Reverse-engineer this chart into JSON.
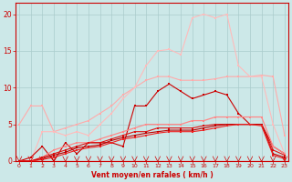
{
  "x": [
    0,
    1,
    2,
    3,
    4,
    5,
    6,
    7,
    8,
    9,
    10,
    11,
    12,
    13,
    14,
    15,
    16,
    17,
    18,
    19,
    20,
    21,
    22,
    23
  ],
  "series": [
    {
      "name": "light_pink_upper",
      "color": "#ffaaaa",
      "linewidth": 0.8,
      "markersize": 2.0,
      "y": [
        5.0,
        7.5,
        7.5,
        4.0,
        4.5,
        5.0,
        5.5,
        6.5,
        7.5,
        9.0,
        10.0,
        11.0,
        11.5,
        11.5,
        11.0,
        11.0,
        11.0,
        11.2,
        11.5,
        11.5,
        11.5,
        11.7,
        11.5,
        3.5
      ]
    },
    {
      "name": "light_pink_peak",
      "color": "#ffbbbb",
      "linewidth": 0.8,
      "markersize": 2.0,
      "y": [
        0.0,
        0.0,
        4.0,
        4.0,
        3.5,
        4.0,
        3.5,
        5.0,
        6.5,
        8.5,
        10.0,
        13.0,
        15.0,
        15.2,
        14.5,
        19.5,
        20.0,
        19.5,
        20.0,
        13.0,
        11.5,
        11.5,
        5.0,
        1.0
      ]
    },
    {
      "name": "dark_red_zigzag",
      "color": "#cc0000",
      "linewidth": 0.8,
      "markersize": 2.0,
      "y": [
        0.0,
        0.5,
        2.0,
        0.0,
        2.5,
        1.0,
        2.5,
        2.5,
        2.5,
        2.0,
        7.5,
        7.5,
        9.5,
        10.5,
        9.5,
        8.5,
        9.0,
        9.5,
        9.0,
        6.5,
        5.0,
        5.0,
        2.0,
        1.0
      ]
    },
    {
      "name": "mid_pink_smooth",
      "color": "#ff8888",
      "linewidth": 0.9,
      "markersize": 2.0,
      "y": [
        0.0,
        0.0,
        0.5,
        1.5,
        2.0,
        2.5,
        2.5,
        3.0,
        3.5,
        4.0,
        4.5,
        5.0,
        5.0,
        5.0,
        5.0,
        5.5,
        5.5,
        6.0,
        6.0,
        6.0,
        6.0,
        6.0,
        2.0,
        1.0
      ]
    },
    {
      "name": "dark_red_smooth1",
      "color": "#dd1111",
      "linewidth": 0.8,
      "markersize": 1.5,
      "y": [
        0.0,
        0.0,
        0.5,
        1.0,
        1.5,
        2.0,
        2.5,
        2.5,
        3.0,
        3.5,
        4.0,
        4.0,
        4.5,
        4.5,
        4.5,
        4.5,
        4.8,
        5.0,
        5.0,
        5.0,
        5.0,
        5.0,
        1.5,
        0.8
      ]
    },
    {
      "name": "dark_red_smooth2",
      "color": "#bb0000",
      "linewidth": 0.8,
      "markersize": 1.5,
      "y": [
        0.0,
        0.0,
        0.3,
        0.8,
        1.2,
        1.8,
        2.0,
        2.2,
        2.8,
        3.2,
        3.5,
        3.8,
        4.0,
        4.2,
        4.2,
        4.2,
        4.5,
        4.8,
        5.0,
        5.0,
        5.0,
        5.0,
        1.0,
        0.5
      ]
    },
    {
      "name": "dark_red_smooth3",
      "color": "#ee2222",
      "linewidth": 0.8,
      "markersize": 1.5,
      "y": [
        0.0,
        0.0,
        0.2,
        0.5,
        1.0,
        1.5,
        1.8,
        2.0,
        2.5,
        3.0,
        3.2,
        3.5,
        3.8,
        4.0,
        4.0,
        4.0,
        4.2,
        4.5,
        4.8,
        5.0,
        5.0,
        4.8,
        0.8,
        0.3
      ]
    }
  ],
  "xlabel": "Vent moyen/en rafales ( km/h )",
  "ylabel_ticks": [
    0,
    5,
    10,
    15,
    20
  ],
  "xticks": [
    0,
    1,
    2,
    3,
    4,
    5,
    6,
    7,
    8,
    9,
    10,
    11,
    12,
    13,
    14,
    15,
    16,
    17,
    18,
    19,
    20,
    21,
    22,
    23
  ],
  "xlim": [
    -0.3,
    23.3
  ],
  "ylim": [
    0,
    21.5
  ],
  "bg_color": "#cce8e8",
  "grid_color": "#aacccc",
  "axis_color": "#cc0000",
  "tick_color": "#cc0000",
  "label_color": "#cc0000"
}
